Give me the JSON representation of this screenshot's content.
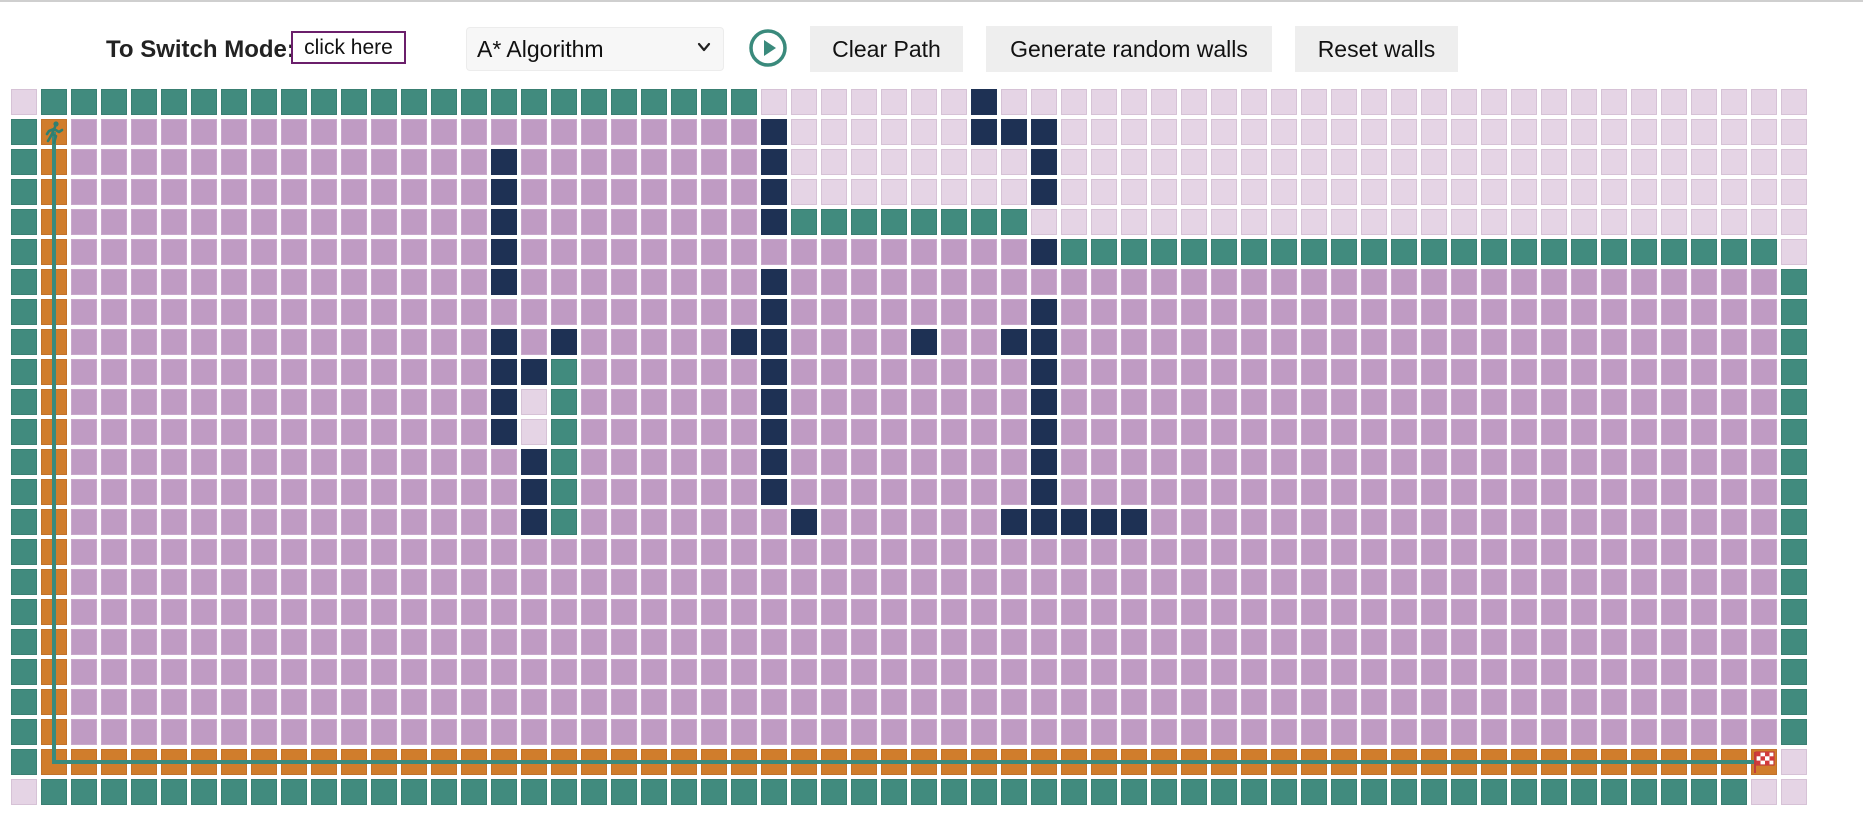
{
  "header": {
    "mode_label": "To Switch Mode:",
    "mode_button": "click here",
    "algorithm_select": {
      "selected": "A* Algorithm",
      "icon": "chevron-down-icon"
    },
    "play_button_icon": "play-circle-icon",
    "clear_path_button": "Clear Path",
    "random_walls_button": "Generate random walls",
    "reset_walls_button": "Reset walls"
  },
  "colors": {
    "unvisited": "#e5d4e5",
    "visited": "#bf9bc3",
    "frontier": "#418b7e",
    "wall": "#1e3154",
    "path": "#d07d2c",
    "accent": "#3a8a7c",
    "mode_border": "#6b1f6b"
  },
  "grid": {
    "rows": 24,
    "cols": 60,
    "start": [
      1,
      1
    ],
    "target": [
      22,
      58
    ],
    "start_icon": "running-person-icon",
    "target_icon": "checkered-flag-icon",
    "legend": {
      "u": "unvisited",
      "v": "visited",
      "f": "frontier",
      "w": "wall",
      "p": "path"
    },
    "cells": [
      "uffffffffffffffffffffffffuuuuuuuwuuuuuuuuuuuuuuuuuuuuuuuuuuu",
      "fpvvvvvvvvvvvvvvvvvvvvvvvwuuuuuuwwwuuuuuuuuuuuuuuuuuuuuuuuuu",
      "fpvvvvvvvvvvvvvvwvvvvvvvvwuuuuuuuuwuuuuuuuuuuuuuuuuuuuuuuuuu",
      "fpvvvvvvvvvvvvvvwvvvvvvvvwuuuuuuuuwuuuuuuuuuuuuuuuuuuuuuuuuu",
      "fpvvvvvvvvvvvvvvwvvvvvvvvwffffffffuuuuuuuuuuuuuuuuuuuuuuuuuu",
      "fpvvvvvvvvvvvvvvwvvvvvvvvvvvvvvvvvwffffffffffffffffffffffffu",
      "fpvvvvvvvvvvvvvvwvvvvvvvvwvvvvvvvvvvvvvvvvvvvvvvvvvvvvvvvvvf",
      "fpvvvvvvvvvvvvvvvvvvvvvvvwvvvvvvvvwvvvvvvvvvvvvvvvvvvvvvvvvf",
      "fpvvvvvvvvvvvvvvwvwvvvvvwwvvvvwvvwwvvvvvvvvvvvvvvvvvvvvvvvvf",
      "fpvvvvvvvvvvvvvvwwfvvvvvvwvvvvvvvvwvvvvvvvvvvvvvvvvvvvvvvvvf",
      "fpvvvvvvvvvvvvvvwufvvvvvvwvvvvvvvvwvvvvvvvvvvvvvvvvvvvvvvvvf",
      "fpvvvvvvvvvvvvvvwufvvvvvvwvvvvvvvvwvvvvvvvvvvvvvvvvvvvvvvvvf",
      "fpvvvvvvvvvvvvvvvwfvvvvvvwvvvvvvvvwvvvvvvvvvvvvvvvvvvvvvvvvf",
      "fpvvvvvvvvvvvvvvvwfvvvvvvwvvvvvvvvwvvvvvvvvvvvvvvvvvvvvvvvvf",
      "fpvvvvvvvvvvvvvvvwfvvvvvvvwvvvvvvwwwwwvvvvvvvvvvvvvvvvvvvvvf",
      "fpvvvvvvvvvvvvvvvvvvvvvvvvvvvvvvvvvvvvvvvvvvvvvvvvvvvvvvvvvf",
      "fpvvvvvvvvvvvvvvvvvvvvvvvvvvvvvvvvvvvvvvvvvvvvvvvvvvvvvvvvvf",
      "fpvvvvvvvvvvvvvvvvvvvvvvvvvvvvvvvvvvvvvvvvvvvvvvvvvvvvvvvvvf",
      "fpvvvvvvvvvvvvvvvvvvvvvvvvvvvvvvvvvvvvvvvvvvvvvvvvvvvvvvvvvf",
      "fpvvvvvvvvvvvvvvvvvvvvvvvvvvvvvvvvvvvvvvvvvvvvvvvvvvvvvvvvvf",
      "fpvvvvvvvvvvvvvvvvvvvvvvvvvvvvvvvvvvvvvvvvvvvvvvvvvvvvvvvvvf",
      "fpvvvvvvvvvvvvvvvvvvvvvvvvvvvvvvvvvvvvvvvvvvvvvvvvvvvvvvvvvf",
      "fppppppppppppppppppppppppppppppppppppppppppppppppppppppppppu",
      "ufffffffffffffffffffffffffffffffffffffffffffffffffffffffffuu"
    ]
  }
}
